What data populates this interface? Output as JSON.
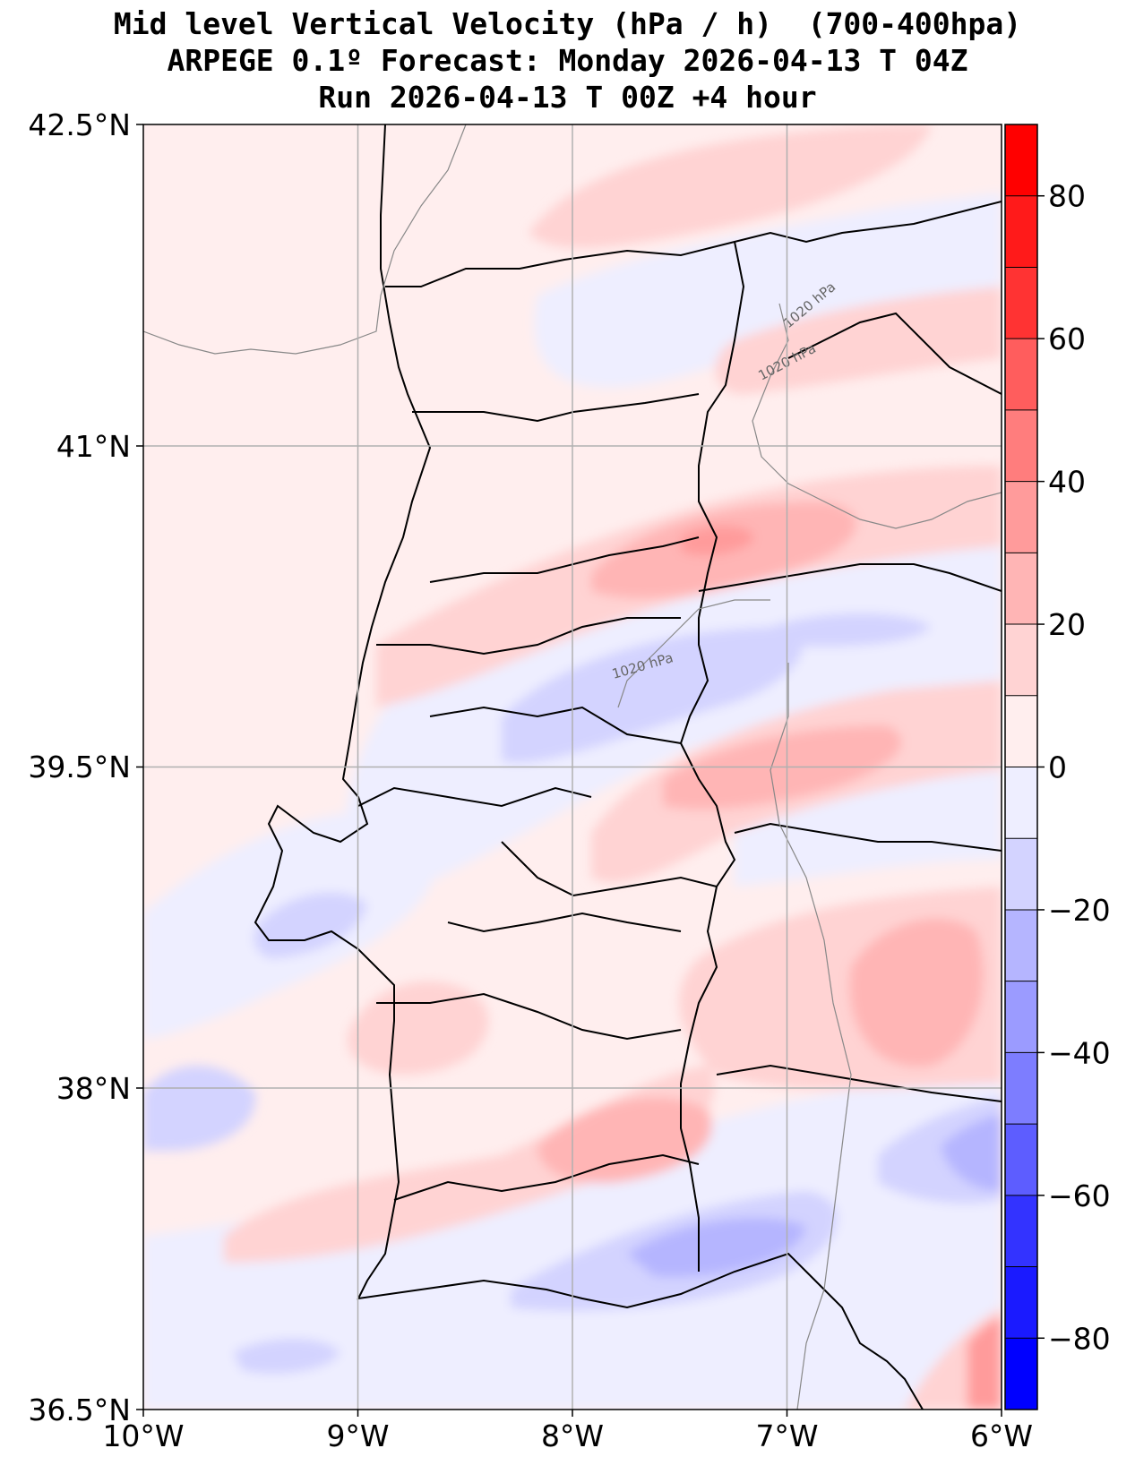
{
  "title": {
    "line1": "Mid level Vertical Velocity (hPa / h)  (700-400hpa)",
    "line2": "ARPEGE 0.1º Forecast: Monday 2026-04-13 T 04Z",
    "line3": "Run 2026-04-13 T 00Z +4 hour"
  },
  "axes": {
    "lon_labels": [
      "10°W",
      "9°W",
      "8°W",
      "7°W",
      "6°W"
    ],
    "lat_labels": [
      "42.5°N",
      "41°N",
      "39.5°N",
      "38°N",
      "36.5°N"
    ]
  },
  "colorbar": {
    "ticks": [
      "80",
      "60",
      "40",
      "20",
      "0",
      "−20",
      "−40",
      "−60",
      "−80"
    ],
    "levels": [
      -90,
      -80,
      -70,
      -60,
      -50,
      -40,
      -30,
      -20,
      -10,
      0,
      10,
      20,
      30,
      40,
      50,
      60,
      70,
      80,
      90
    ],
    "colors": [
      "#0000ff",
      "#1a1aff",
      "#3333ff",
      "#5d5dff",
      "#7d7dff",
      "#9b9bff",
      "#b5b5ff",
      "#d3d3ff",
      "#eeeeff",
      "#ffeeee",
      "#ffd3d3",
      "#ffb5b5",
      "#ff9b9b",
      "#ff7d7d",
      "#ff5d5d",
      "#ff3333",
      "#ff1a1a",
      "#ff0000"
    ]
  },
  "isobar_labels": [
    "1020 hPa",
    "1020 hPa",
    "1020 hPa"
  ]
}
